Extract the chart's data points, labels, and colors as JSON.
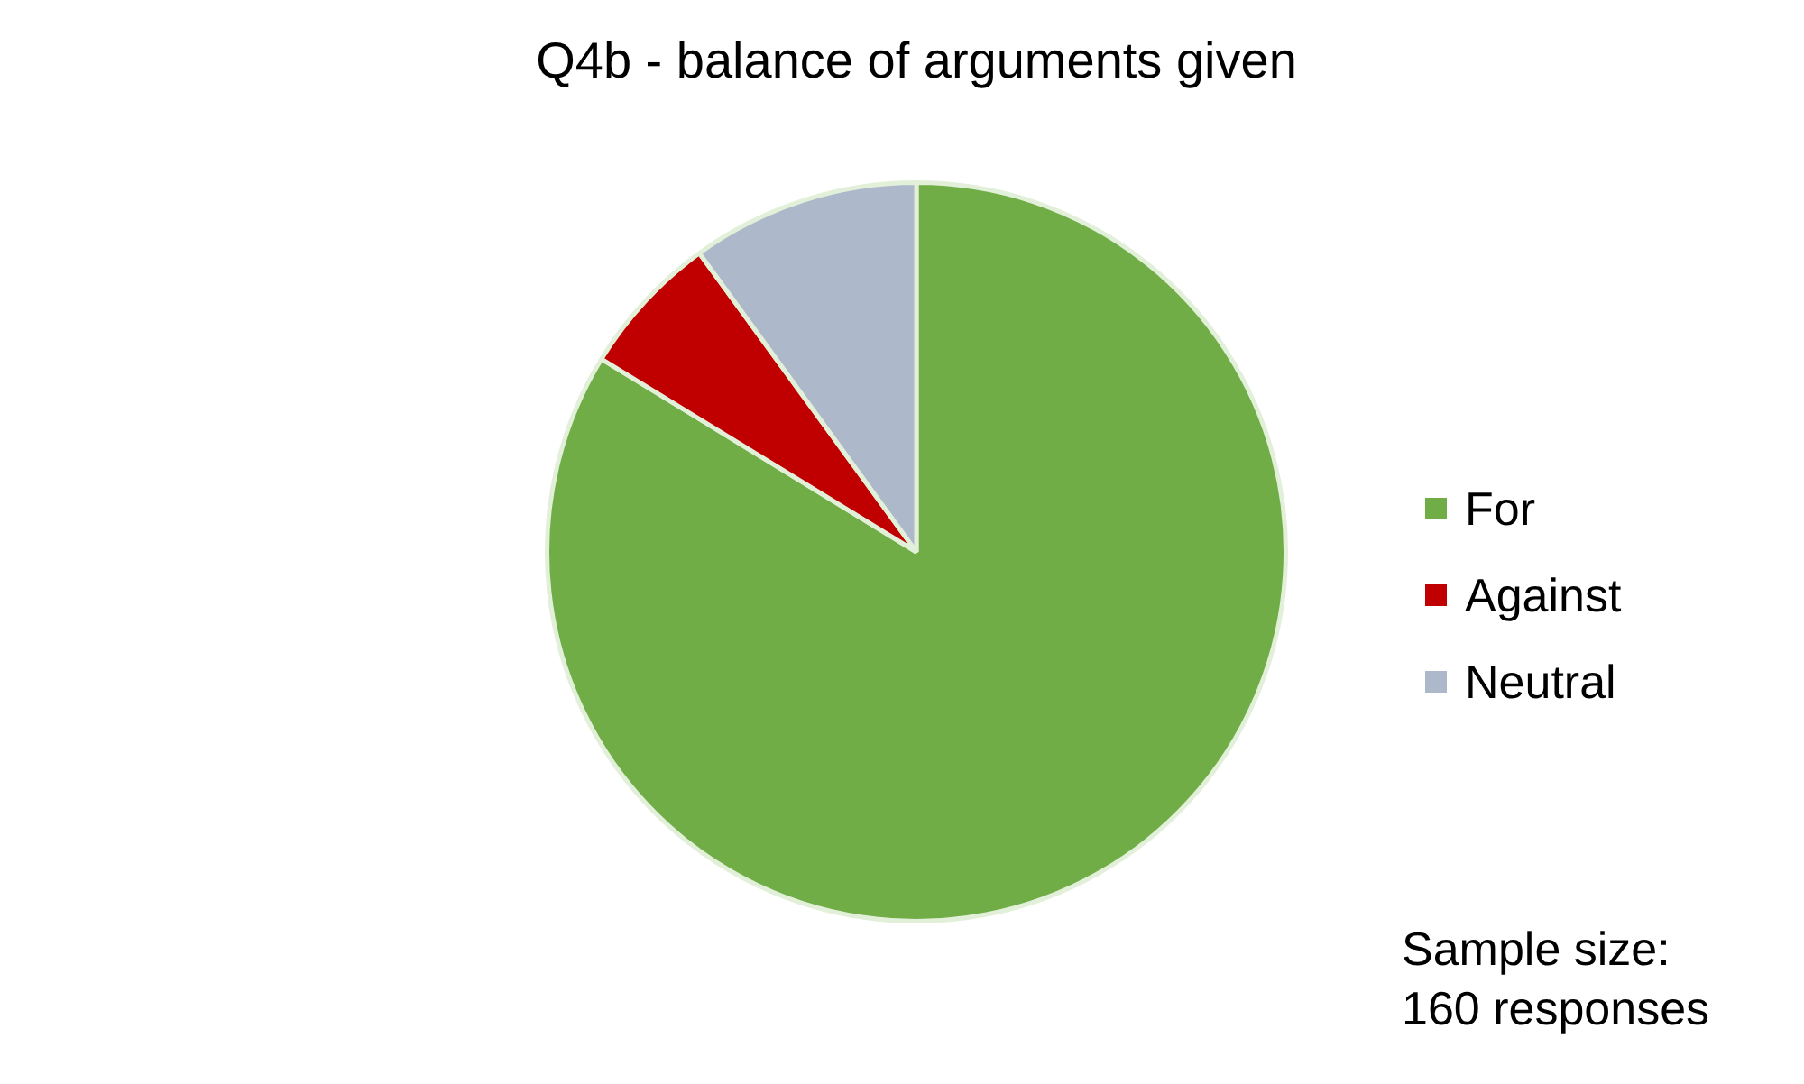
{
  "chart_data": {
    "type": "pie",
    "title": "Q4b - balance of arguments given",
    "categories": [
      "For",
      "Against",
      "Neutral"
    ],
    "values": [
      83.75,
      6.25,
      10
    ],
    "colors": [
      "#70ad47",
      "#c00000",
      "#adb9ca"
    ],
    "legend": "right",
    "annotations": [
      "Sample size:\n160 responses"
    ]
  }
}
